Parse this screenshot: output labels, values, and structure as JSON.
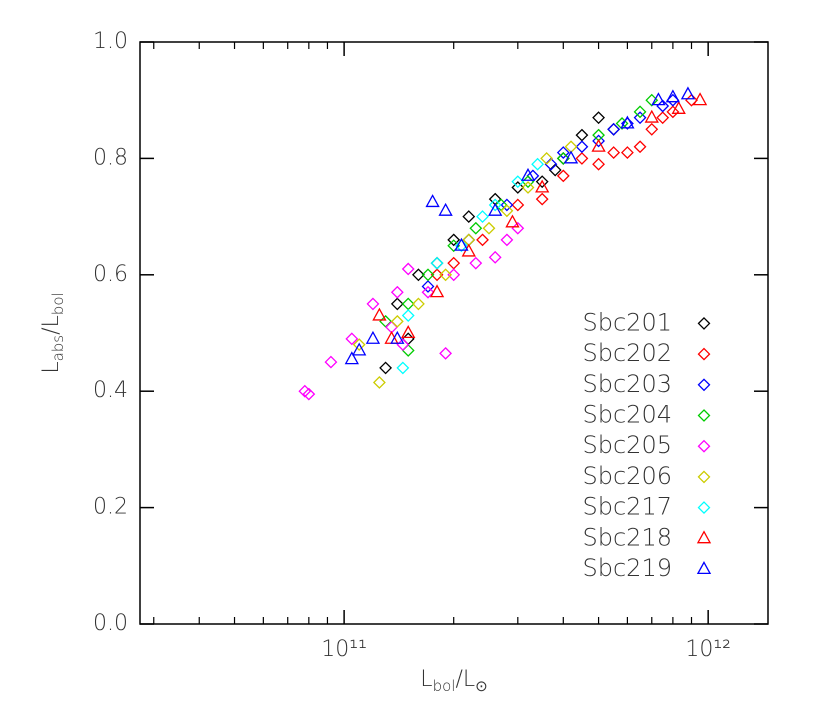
{
  "chart_data": {
    "type": "scatter",
    "xlabel": [
      "L",
      "bol",
      "/L",
      "⊙"
    ],
    "ylabel": [
      "L",
      "abs",
      "/L",
      "bol"
    ],
    "xscale": "log",
    "xlim": [
      27500000000.0,
      1460000000000.0
    ],
    "xticks": [
      {
        "value": 100000000000.0,
        "label": "10¹¹"
      },
      {
        "value": 1000000000000.0,
        "label": "10¹²"
      }
    ],
    "xminorticks": [
      30000000000.0,
      40000000000.0,
      50000000000.0,
      60000000000.0,
      70000000000.0,
      80000000000.0,
      90000000000.0,
      200000000000.0,
      300000000000.0,
      400000000000.0,
      500000000000.0,
      600000000000.0,
      700000000000.0,
      800000000000.0,
      900000000000.0
    ],
    "ylim": [
      0,
      1
    ],
    "yticks": [
      {
        "value": 0,
        "label": "0.0"
      },
      0.2,
      0.4,
      0.6,
      0.8,
      {
        "value": 1,
        "label": "1.0"
      }
    ],
    "legend": "lower right",
    "series": [
      {
        "name": "Sbc201",
        "color": "#000000",
        "marker": "diamond",
        "x": [
          130000000000.0,
          140000000000.0,
          160000000000.0,
          180000000000.0,
          200000000000.0,
          220000000000.0,
          260000000000.0,
          300000000000.0,
          350000000000.0,
          400000000000.0,
          450000000000.0,
          500000000000.0,
          550000000000.0,
          380000000000.0,
          150000000000.0
        ],
        "values": [
          0.44,
          0.55,
          0.6,
          0.62,
          0.66,
          0.7,
          0.73,
          0.75,
          0.76,
          0.8,
          0.84,
          0.87,
          0.85,
          0.78,
          0.49
        ]
      },
      {
        "name": "Sbc202",
        "color": "#ff0000",
        "marker": "diamond",
        "x": [
          200000000000.0,
          240000000000.0,
          300000000000.0,
          350000000000.0,
          400000000000.0,
          450000000000.0,
          500000000000.0,
          550000000000.0,
          600000000000.0,
          650000000000.0,
          700000000000.0,
          750000000000.0,
          800000000000.0,
          900000000000.0,
          180000000000.0
        ],
        "values": [
          0.62,
          0.66,
          0.72,
          0.73,
          0.77,
          0.8,
          0.79,
          0.81,
          0.81,
          0.82,
          0.85,
          0.87,
          0.88,
          0.9,
          0.6
        ]
      },
      {
        "name": "Sbc203",
        "color": "#0000ff",
        "marker": "diamond",
        "x": [
          220000000000.0,
          280000000000.0,
          330000000000.0,
          400000000000.0,
          450000000000.0,
          500000000000.0,
          550000000000.0,
          600000000000.0,
          650000000000.0,
          750000000000.0,
          800000000000.0,
          170000000000.0,
          370000000000.0
        ],
        "values": [
          0.66,
          0.72,
          0.77,
          0.81,
          0.82,
          0.83,
          0.85,
          0.86,
          0.87,
          0.89,
          0.9,
          0.58,
          0.79
        ]
      },
      {
        "name": "Sbc204",
        "color": "#00cc00",
        "marker": "diamond",
        "x": [
          130000000000.0,
          150000000000.0,
          170000000000.0,
          200000000000.0,
          230000000000.0,
          270000000000.0,
          320000000000.0,
          400000000000.0,
          500000000000.0,
          580000000000.0,
          650000000000.0,
          700000000000.0,
          150000000000.0
        ],
        "values": [
          0.52,
          0.55,
          0.6,
          0.65,
          0.68,
          0.72,
          0.76,
          0.8,
          0.84,
          0.86,
          0.88,
          0.9,
          0.47
        ]
      },
      {
        "name": "Sbc205",
        "color": "#ff00ff",
        "marker": "diamond",
        "x": [
          78000000000.0,
          80000000000.0,
          92000000000.0,
          105000000000.0,
          120000000000.0,
          140000000000.0,
          150000000000.0,
          170000000000.0,
          190000000000.0,
          200000000000.0,
          230000000000.0,
          260000000000.0,
          280000000000.0,
          300000000000.0,
          145000000000.0,
          135000000000.0
        ],
        "values": [
          0.4,
          0.395,
          0.45,
          0.49,
          0.55,
          0.57,
          0.61,
          0.57,
          0.465,
          0.6,
          0.62,
          0.63,
          0.66,
          0.68,
          0.48,
          0.51
        ]
      },
      {
        "name": "Sbc206",
        "color": "#cccc00",
        "marker": "diamond",
        "x": [
          125000000000.0,
          140000000000.0,
          160000000000.0,
          190000000000.0,
          220000000000.0,
          250000000000.0,
          280000000000.0,
          320000000000.0,
          360000000000.0,
          420000000000.0,
          110000000000.0
        ],
        "values": [
          0.415,
          0.52,
          0.55,
          0.6,
          0.66,
          0.68,
          0.71,
          0.75,
          0.8,
          0.82,
          0.48
        ]
      },
      {
        "name": "Sbc217",
        "color": "#00ffff",
        "marker": "diamond",
        "x": [
          150000000000.0,
          180000000000.0,
          210000000000.0,
          240000000000.0,
          260000000000.0,
          300000000000.0,
          340000000000.0,
          145000000000.0
        ],
        "values": [
          0.53,
          0.62,
          0.65,
          0.7,
          0.72,
          0.76,
          0.79,
          0.44
        ]
      },
      {
        "name": "Sbc218",
        "color": "#ff0000",
        "marker": "triangle",
        "x": [
          125000000000.0,
          135000000000.0,
          150000000000.0,
          180000000000.0,
          220000000000.0,
          290000000000.0,
          350000000000.0,
          500000000000.0,
          700000000000.0,
          830000000000.0,
          950000000000.0
        ],
        "values": [
          0.53,
          0.49,
          0.5,
          0.57,
          0.64,
          0.69,
          0.75,
          0.82,
          0.87,
          0.885,
          0.9
        ]
      },
      {
        "name": "Sbc219",
        "color": "#0000ff",
        "marker": "triangle",
        "x": [
          105000000000.0,
          110000000000.0,
          120000000000.0,
          140000000000.0,
          175000000000.0,
          190000000000.0,
          210000000000.0,
          260000000000.0,
          320000000000.0,
          420000000000.0,
          600000000000.0,
          730000000000.0,
          800000000000.0,
          880000000000.0
        ],
        "values": [
          0.455,
          0.47,
          0.49,
          0.49,
          0.725,
          0.71,
          0.65,
          0.71,
          0.77,
          0.8,
          0.86,
          0.9,
          0.905,
          0.91
        ]
      }
    ]
  }
}
